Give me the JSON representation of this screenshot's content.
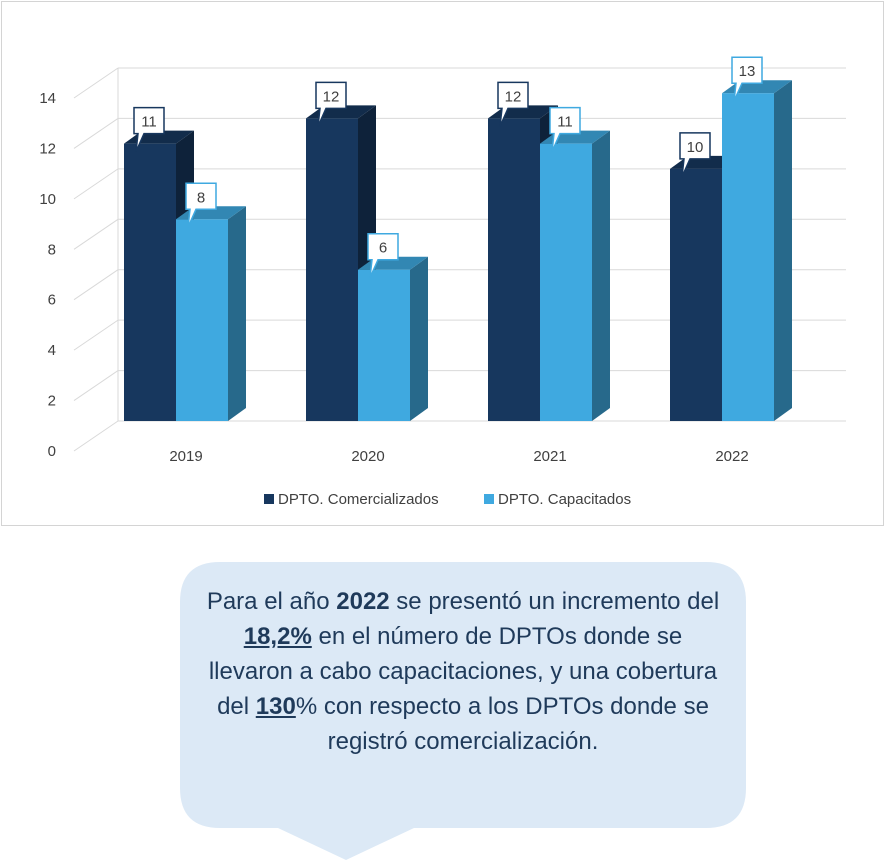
{
  "chart_data": {
    "type": "bar",
    "categories": [
      "2019",
      "2020",
      "2021",
      "2022"
    ],
    "series": [
      {
        "name": "DPTO. Comercializados",
        "values": [
          11,
          12,
          12,
          10
        ],
        "color": "#17375e"
      },
      {
        "name": "DPTO. Capacitados",
        "values": [
          8,
          6,
          11,
          13
        ],
        "color": "#3fa9e0"
      }
    ],
    "data_labels": [
      [
        "11",
        "12",
        "12",
        "10"
      ],
      [
        "8",
        "6",
        "11",
        "13"
      ]
    ],
    "y_ticks": [
      "0",
      "2",
      "4",
      "6",
      "8",
      "10",
      "12",
      "14"
    ],
    "ylim": [
      0,
      14
    ],
    "grid": true,
    "legend_position": "bottom",
    "title": "",
    "xlabel": "",
    "ylabel": ""
  },
  "callout": {
    "p1": "Para el año ",
    "year": "2022",
    "p2": " se presentó un incremento del ",
    "pct1": "18,2%",
    "p3": " en el número de DPTOs donde se llevaron a cabo capacitaciones, y una cobertura del ",
    "pct2": "130",
    "p4": "% con respecto a los DPTOs donde se registró comercialización.",
    "bg_color": "#dce9f6",
    "text_color": "#1f3a5a"
  }
}
